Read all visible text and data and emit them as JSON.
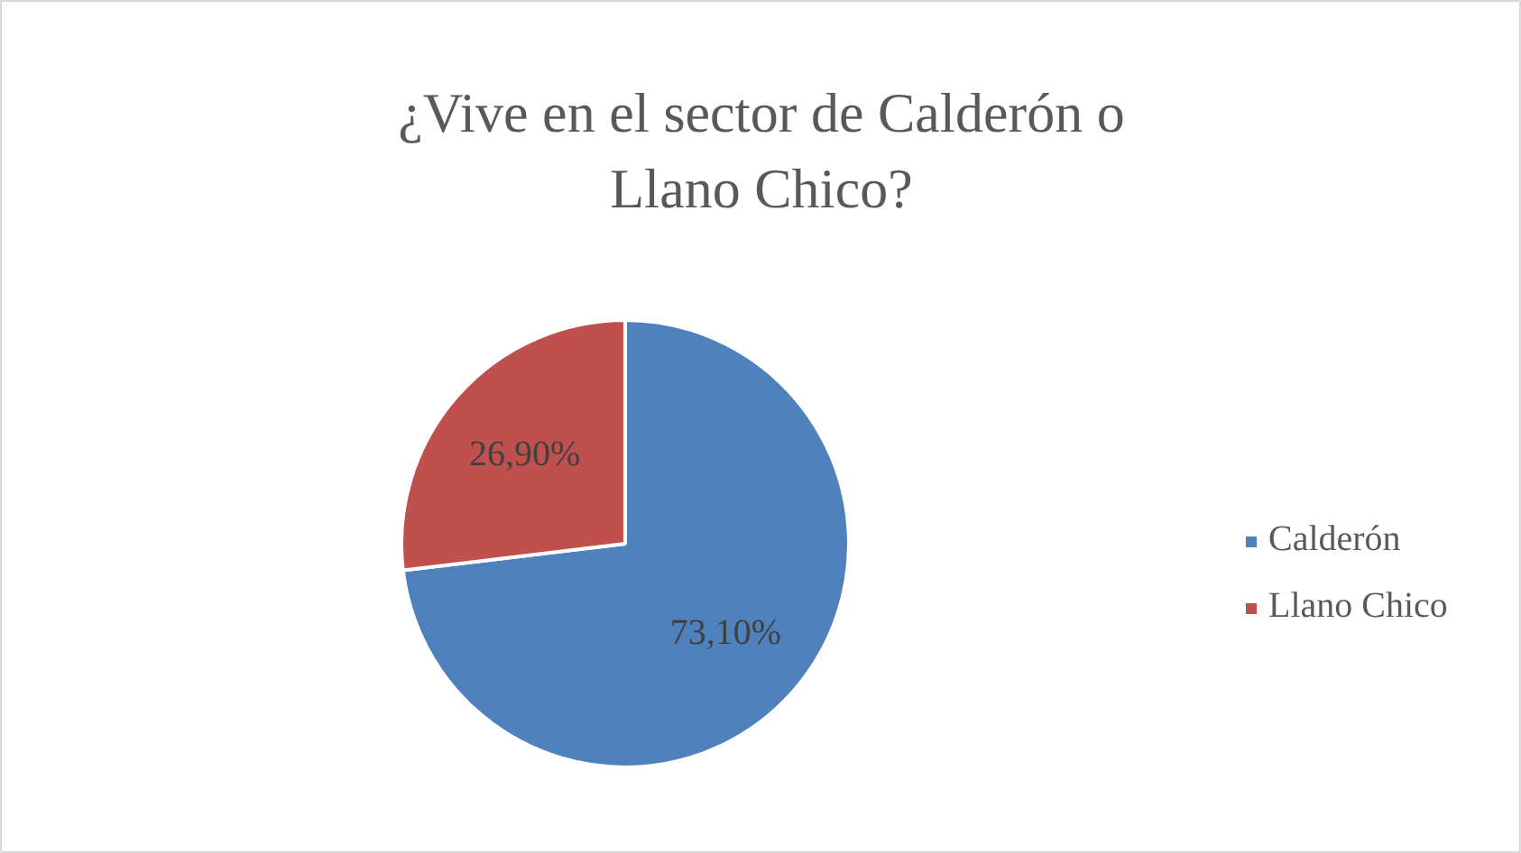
{
  "chart_data": {
    "type": "pie",
    "title": "¿Vive en el sector de Calderón o Llano Chico?",
    "categories": [
      "Calderón",
      "Llano Chico"
    ],
    "values": [
      73.1,
      26.9
    ],
    "colors": [
      "#4f81bd",
      "#c0504d"
    ],
    "value_labels": [
      "73,10%",
      "26,90%"
    ],
    "legend": "right"
  }
}
